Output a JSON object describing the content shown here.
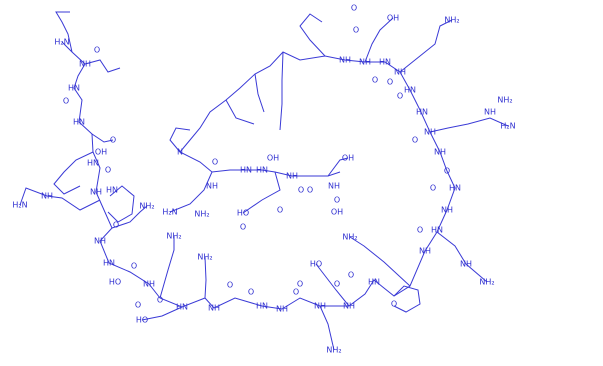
{
  "atoms": [
    "H₂N",
    "O",
    "NH",
    "HN",
    "O",
    "HN",
    "O",
    "OH",
    "HN",
    "O",
    "NH",
    "HN",
    "NH",
    "H₂N",
    "NH₂",
    "O",
    "NH",
    "HN",
    "O",
    "HO",
    "NH",
    "O",
    "HN",
    "NH₂",
    "HO",
    "O",
    "O",
    "NH",
    "NH₂",
    "O",
    "HN",
    "O",
    "NH",
    "O",
    "NH",
    "NH₂",
    "HO",
    "O",
    "NH",
    "O",
    "NH₂",
    "HN",
    "O",
    "NH",
    "HN",
    "NH",
    "NH₂",
    "O",
    "NH",
    "O",
    "HN",
    "O",
    "NH",
    "H₂N",
    "O",
    "NH",
    "HN",
    "NH",
    "NH₂",
    "O",
    "HN",
    "O",
    "NH",
    "O",
    "HN",
    "NH₂",
    "O",
    "OH",
    "O",
    "NH",
    "NH",
    "N",
    "O",
    "HN",
    "NH",
    "H₂N",
    "NH₂",
    "O",
    "OH",
    "NH",
    "O",
    "HO",
    "O",
    "HN",
    "O",
    "OH",
    "NH",
    "O",
    "OH"
  ]
}
